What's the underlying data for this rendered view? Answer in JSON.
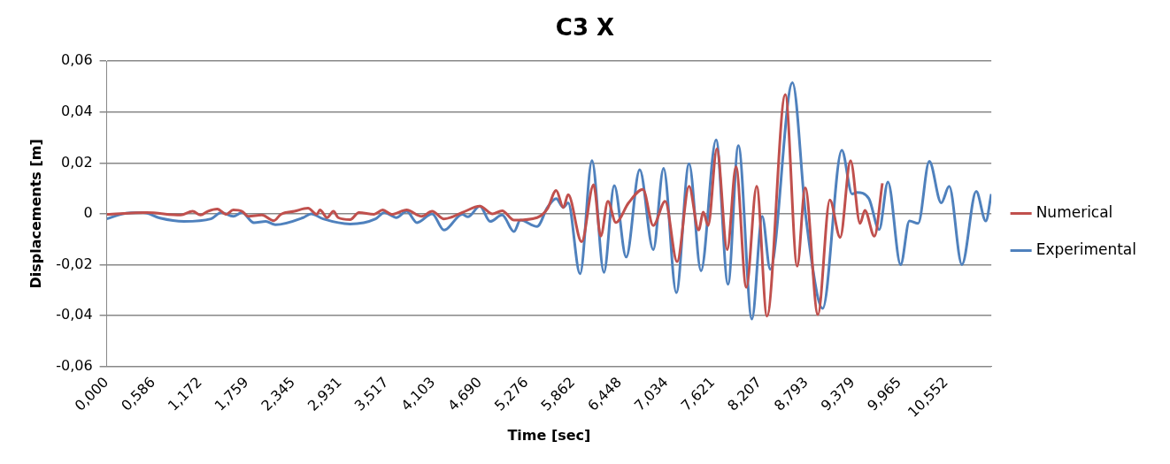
{
  "chart_data": {
    "type": "line",
    "title": "C3 X",
    "xlabel": "Time [sec]",
    "ylabel": "Displacements [m]",
    "xlim": [
      0,
      11.12
    ],
    "xticks": [
      {
        "value": 0,
        "label": "0,000"
      },
      {
        "value": 0.586,
        "label": "0,586"
      },
      {
        "value": 1.172,
        "label": "1,172"
      },
      {
        "value": 1.759,
        "label": "1,759"
      },
      {
        "value": 2.345,
        "label": "2,345"
      },
      {
        "value": 2.931,
        "label": "2,931"
      },
      {
        "value": 3.517,
        "label": "3,517"
      },
      {
        "value": 4.103,
        "label": "4,103"
      },
      {
        "value": 4.69,
        "label": "4,690"
      },
      {
        "value": 5.276,
        "label": "5,276"
      },
      {
        "value": 5.862,
        "label": "5,862"
      },
      {
        "value": 6.448,
        "label": "6,448"
      },
      {
        "value": 7.034,
        "label": "7,034"
      },
      {
        "value": 7.621,
        "label": "7,621"
      },
      {
        "value": 8.207,
        "label": "8,207"
      },
      {
        "value": 8.793,
        "label": "8,793"
      },
      {
        "value": 9.379,
        "label": "9,379"
      },
      {
        "value": 9.965,
        "label": "9,965"
      },
      {
        "value": 10.552,
        "label": "10,552"
      }
    ],
    "ylim": [
      -0.06,
      0.06
    ],
    "yticks": [
      {
        "value": -0.06,
        "label": "-0,06"
      },
      {
        "value": -0.04,
        "label": "-0,04"
      },
      {
        "value": -0.02,
        "label": "-0,02"
      },
      0,
      {
        "value": 0.02,
        "label": "0,02"
      },
      {
        "value": 0.04,
        "label": "0,04"
      },
      {
        "value": 0.06,
        "label": "0,06"
      }
    ],
    "grid": "y",
    "legend": "right",
    "marker": "none",
    "line_style": "solid",
    "series": [
      {
        "name": "Numerical",
        "color": "#c0504d",
        "x": [
          0,
          0.5,
          0.93,
          1.08,
          1.18,
          1.27,
          1.39,
          1.5,
          1.59,
          1.7,
          1.78,
          1.95,
          2.1,
          2.19,
          2.36,
          2.53,
          2.64,
          2.68,
          2.77,
          2.85,
          2.91,
          3.06,
          3.17,
          3.36,
          3.47,
          3.58,
          3.77,
          3.96,
          4.09,
          4.24,
          4.47,
          4.69,
          4.85,
          4.97,
          5.12,
          5.41,
          5.54,
          5.65,
          5.74,
          5.8,
          5.97,
          6.12,
          6.21,
          6.3,
          6.4,
          6.56,
          6.74,
          6.87,
          7.02,
          7.17,
          7.32,
          7.44,
          7.5,
          7.56,
          7.67,
          7.8,
          7.91,
          8.04,
          8.17,
          8.3,
          8.53,
          8.68,
          8.78,
          8.94,
          9.09,
          9.22,
          9.35,
          9.47,
          9.53,
          9.65,
          9.75
        ],
        "values": [
          -0.0002,
          0.0005,
          -0.0005,
          0.001,
          -0.0005,
          0.001,
          0.0019,
          -0.0002,
          0.0015,
          0.001,
          -0.001,
          -0.0005,
          -0.0027,
          -0.0002,
          0.001,
          0.0022,
          -0.0002,
          0.0015,
          -0.0015,
          0.001,
          -0.0015,
          -0.0023,
          0.0005,
          -0.0002,
          0.0015,
          -0.0002,
          0.0015,
          -0.001,
          0.001,
          -0.002,
          0.0005,
          0.003,
          0,
          0.0012,
          -0.0025,
          -0.0015,
          0.002,
          0.0092,
          0.0025,
          0.0075,
          -0.011,
          0.0114,
          -0.0088,
          0.0049,
          -0.0034,
          0.0043,
          0.0096,
          -0.0046,
          0.0049,
          -0.0188,
          0.0108,
          -0.0064,
          0.0007,
          -0.0046,
          0.0256,
          -0.0141,
          0.0185,
          -0.0289,
          0.0108,
          -0.0402,
          0.0469,
          -0.0206,
          0.0102,
          -0.0396,
          0.0054,
          -0.0093,
          0.0209,
          -0.0038,
          0.0014,
          -0.0088,
          0.012
        ]
      },
      {
        "name": "Experimental",
        "color": "#4f81bd",
        "x": [
          0,
          0.2,
          0.46,
          0.67,
          0.97,
          1.31,
          1.44,
          1.59,
          1.7,
          1.85,
          2,
          2.12,
          2.47,
          2.57,
          2.72,
          3.06,
          3.38,
          3.49,
          3.64,
          3.77,
          3.9,
          4.09,
          4.24,
          4.47,
          4.54,
          4.69,
          4.82,
          4.97,
          5.12,
          5.2,
          5.41,
          5.54,
          5.65,
          5.74,
          5.8,
          5.95,
          6.1,
          6.25,
          6.38,
          6.53,
          6.7,
          6.87,
          7,
          7.16,
          7.32,
          7.47,
          7.66,
          7.81,
          7.94,
          8.11,
          8.24,
          8.34,
          8.62,
          8.79,
          9,
          9.24,
          9.37,
          9.43,
          9.58,
          9.71,
          9.82,
          9.98,
          10.09,
          10.2,
          10.34,
          10.49,
          10.59,
          10.75,
          10.93,
          11.05,
          11.12
        ],
        "values": [
          -0.002,
          0,
          0.0005,
          -0.0017,
          -0.003,
          -0.002,
          0.0005,
          -0.001,
          0.0005,
          -0.0035,
          -0.003,
          -0.0043,
          -0.0015,
          0,
          -0.002,
          -0.004,
          -0.002,
          0.0005,
          -0.0015,
          0.001,
          -0.0035,
          0,
          -0.0064,
          -0.0002,
          -0.0012,
          0.003,
          -0.003,
          -0.0005,
          -0.007,
          -0.0025,
          -0.005,
          0.0025,
          0.006,
          0.0025,
          0.0043,
          -0.0236,
          0.0209,
          -0.023,
          0.0111,
          -0.017,
          0.0173,
          -0.0141,
          0.0179,
          -0.031,
          0.0197,
          -0.0224,
          0.0291,
          -0.0277,
          0.0268,
          -0.0414,
          -0.001,
          -0.0218,
          0.0516,
          -0.0017,
          -0.0372,
          0.025,
          0.0078,
          0.0084,
          0.006,
          -0.0062,
          0.0125,
          -0.02,
          -0.0028,
          -0.0038,
          0.0206,
          0.0043,
          0.0108,
          -0.02,
          0.0088,
          -0.0028,
          0.0078
        ]
      }
    ]
  }
}
